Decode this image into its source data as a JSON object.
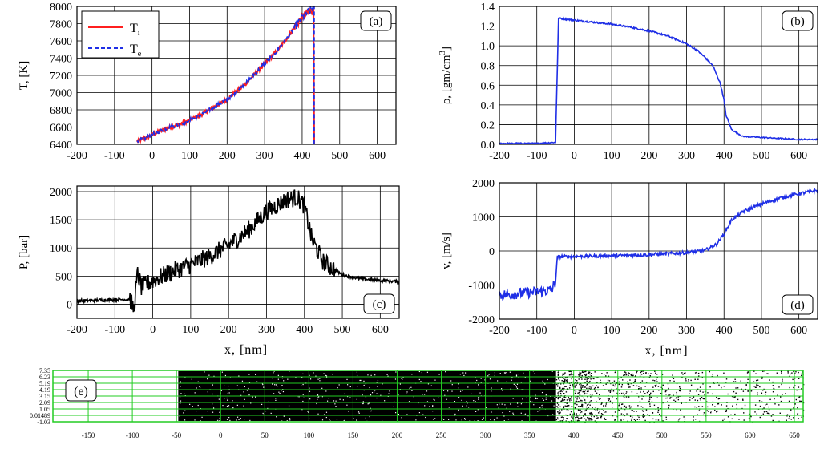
{
  "colors": {
    "red": "#ff1f1f",
    "blue": "#1f2fe6",
    "black": "#000000",
    "green": "#22cc22",
    "grid": "#000000"
  },
  "chart_data": [
    {
      "id": "a",
      "type": "line",
      "panel_label": "(a)",
      "ylabel": "T, [K]",
      "xlabel": "",
      "xlim": [
        -200,
        650
      ],
      "ylim": [
        6400,
        8000
      ],
      "xticks": [
        "-200",
        "-100",
        "0",
        "100",
        "200",
        "300",
        "400",
        "500",
        "600"
      ],
      "yticks": [
        "6400",
        "6600",
        "6800",
        "7000",
        "7200",
        "7400",
        "7600",
        "7800",
        "8000"
      ],
      "grid": true,
      "legend": "top-left",
      "series": [
        {
          "name": "Ti",
          "name_main": "T",
          "name_sub": "i",
          "color": "#ff1f1f",
          "style": "solid",
          "x": [
            -40,
            -20,
            0,
            20,
            50,
            80,
            100,
            130,
            160,
            200,
            230,
            260,
            300,
            330,
            360,
            380,
            400,
            415,
            425,
            430,
            432
          ],
          "y": [
            6440,
            6470,
            6510,
            6550,
            6600,
            6640,
            6680,
            6740,
            6820,
            6920,
            7030,
            7150,
            7340,
            7470,
            7630,
            7760,
            7870,
            7930,
            7960,
            7950,
            6400
          ]
        },
        {
          "name": "Te",
          "name_main": "T",
          "name_sub": "e",
          "color": "#1f2fe6",
          "style": "dashed",
          "x": [
            -40,
            -20,
            0,
            20,
            50,
            80,
            100,
            130,
            160,
            200,
            230,
            260,
            300,
            330,
            360,
            380,
            400,
            415,
            425,
            432,
            432
          ],
          "y": [
            6440,
            6470,
            6510,
            6550,
            6600,
            6640,
            6680,
            6740,
            6820,
            6920,
            7030,
            7150,
            7340,
            7470,
            7630,
            7760,
            7870,
            7930,
            7960,
            8010,
            6400
          ]
        }
      ]
    },
    {
      "id": "b",
      "type": "line",
      "panel_label": "(b)",
      "ylabel": "ρ, [gm/cm³]",
      "ylabel_main": "ρ, [gm/cm",
      "ylabel_sup": "3",
      "ylabel_end": "]",
      "xlabel": "",
      "xlim": [
        -200,
        650
      ],
      "ylim": [
        0,
        1.4
      ],
      "xticks": [
        "-200",
        "-100",
        "0",
        "100",
        "200",
        "300",
        "400",
        "500",
        "600"
      ],
      "yticks": [
        "0.0",
        "0.2",
        "0.4",
        "0.6",
        "0.8",
        "1.0",
        "1.2",
        "1.4"
      ],
      "grid": true,
      "series": [
        {
          "color": "#1f2fe6",
          "x": [
            -200,
            -100,
            -50,
            -45,
            -42,
            0,
            50,
            100,
            150,
            200,
            250,
            300,
            330,
            350,
            370,
            390,
            400,
            405,
            420,
            450,
            500,
            550,
            600,
            650
          ],
          "y": [
            0.01,
            0.01,
            0.02,
            0.8,
            1.28,
            1.26,
            1.24,
            1.22,
            1.19,
            1.15,
            1.1,
            1.02,
            0.95,
            0.88,
            0.8,
            0.62,
            0.45,
            0.3,
            0.15,
            0.08,
            0.07,
            0.06,
            0.05,
            0.05
          ]
        }
      ]
    },
    {
      "id": "c",
      "type": "line",
      "panel_label": "(c)",
      "ylabel": "P, [bar]",
      "xlabel": "x, [nm]",
      "xlim": [
        -200,
        650
      ],
      "ylim": [
        -250,
        2100
      ],
      "xticks": [
        "-200",
        "-100",
        "0",
        "100",
        "200",
        "300",
        "400",
        "500",
        "600"
      ],
      "yticks": [
        "0",
        "500",
        "1000",
        "1500",
        "2000"
      ],
      "yvals": [
        0,
        500,
        1000,
        1500,
        2000
      ],
      "grid": true,
      "series": [
        {
          "color": "#000000",
          "x": [
            -200,
            -150,
            -100,
            -60,
            -50,
            -40,
            -30,
            0,
            50,
            100,
            150,
            200,
            250,
            300,
            350,
            380,
            400,
            420,
            450,
            500,
            550,
            600,
            650
          ],
          "y": [
            60,
            70,
            80,
            90,
            -100,
            550,
            300,
            420,
            580,
            700,
            850,
            1050,
            1300,
            1650,
            1850,
            1900,
            1750,
            1150,
            750,
            520,
            450,
            420,
            400
          ]
        }
      ]
    },
    {
      "id": "d",
      "type": "line",
      "panel_label": "(d)",
      "ylabel": "v, [m/s]",
      "xlabel": "x, [nm]",
      "xlim": [
        -200,
        650
      ],
      "ylim": [
        -2000,
        2000
      ],
      "xticks": [
        "-200",
        "-100",
        "0",
        "100",
        "200",
        "300",
        "400",
        "500",
        "600"
      ],
      "yticks": [
        "-2000",
        "-1000",
        "0",
        "1000",
        "2000"
      ],
      "yvals": [
        -2000,
        -1000,
        0,
        1000,
        2000
      ],
      "grid": true,
      "series": [
        {
          "color": "#1f2fe6",
          "x": [
            -200,
            -150,
            -100,
            -60,
            -50,
            -45,
            0,
            100,
            200,
            300,
            350,
            380,
            400,
            420,
            450,
            500,
            550,
            600,
            650
          ],
          "y": [
            -1300,
            -1250,
            -1200,
            -1150,
            -900,
            -170,
            -160,
            -140,
            -110,
            -50,
            20,
            200,
            500,
            900,
            1150,
            1380,
            1550,
            1680,
            1780
          ]
        }
      ]
    },
    {
      "id": "e",
      "type": "scatter",
      "panel_label": "(e)",
      "xlim": [
        -190,
        660
      ],
      "ylim": [
        -1.03,
        7.35
      ],
      "xticks": [
        "-150",
        "-100",
        "-50",
        "0",
        "50",
        "100",
        "150",
        "200",
        "250",
        "300",
        "350",
        "400",
        "450",
        "500",
        "550",
        "600",
        "650"
      ],
      "xvals": [
        -150,
        -100,
        -50,
        0,
        50,
        100,
        150,
        200,
        250,
        300,
        350,
        400,
        450,
        500,
        550,
        600,
        650
      ],
      "yticks": [
        "-1.03",
        "0.01489",
        "1.05",
        "2.09",
        "3.15",
        "4.19",
        "5.19",
        "6.23",
        "7.35"
      ],
      "grid": true,
      "grid_color": "#22cc22",
      "density": [
        {
          "x0": -190,
          "x1": -48,
          "frac": 0.0
        },
        {
          "x0": -48,
          "x1": 380,
          "frac": 0.95
        },
        {
          "x0": 380,
          "x1": 420,
          "frac": 0.55
        },
        {
          "x0": 420,
          "x1": 500,
          "frac": 0.22
        },
        {
          "x0": 500,
          "x1": 660,
          "frac": 0.12
        }
      ]
    }
  ]
}
